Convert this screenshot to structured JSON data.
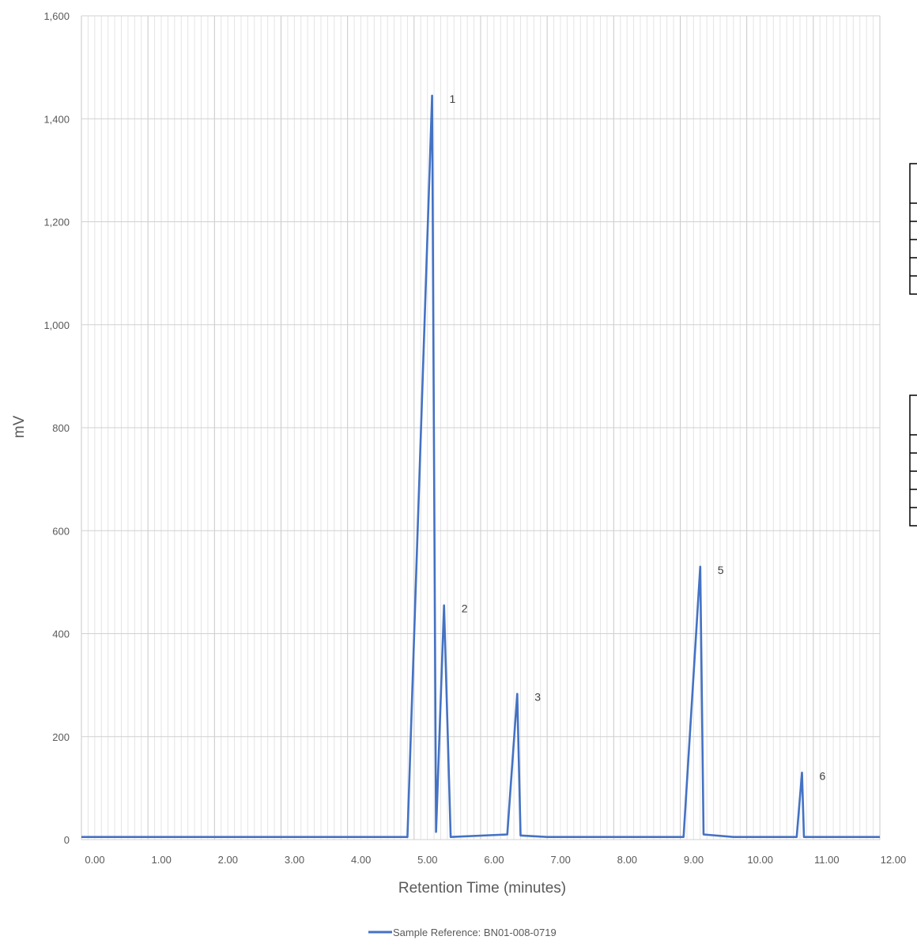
{
  "chart_data": {
    "type": "line",
    "xlabel": "Retention  Time (minutes)",
    "ylabel": "mV",
    "xlim": [
      0,
      12
    ],
    "ylim": [
      0,
      1600
    ],
    "x_ticks": [
      "0.00",
      "1.00",
      "2.00",
      "3.00",
      "4.00",
      "5.00",
      "6.00",
      "7.00",
      "8.00",
      "9.00",
      "10.00",
      "11.00",
      "12.00"
    ],
    "y_ticks": [
      "0",
      "200",
      "400",
      "600",
      "800",
      "1,000",
      "1,200",
      "1,400",
      "1,600"
    ],
    "grid": {
      "major_x": true,
      "minor_x": true,
      "major_y": true
    },
    "legend_position": "bottom",
    "series": [
      {
        "name": "Sample Reference: BN01-008-0719",
        "color": "#4472c4",
        "x": [
          0.0,
          4.9,
          5.27,
          5.33,
          5.45,
          5.55,
          6.4,
          6.55,
          6.6,
          7.0,
          9.05,
          9.3,
          9.35,
          9.8,
          10.75,
          10.83,
          10.86,
          11.0,
          12.0
        ],
        "y": [
          5,
          5,
          1445,
          15,
          455,
          5,
          10,
          283,
          8,
          5,
          5,
          530,
          10,
          5,
          5,
          130,
          5,
          5,
          5
        ]
      }
    ],
    "peak_labels": [
      {
        "text": "1",
        "x": 5.27,
        "y": 1445
      },
      {
        "text": "2",
        "x": 5.45,
        "y": 455
      },
      {
        "text": "3",
        "x": 6.55,
        "y": 283
      },
      {
        "text": "5",
        "x": 9.3,
        "y": 530
      },
      {
        "text": "6",
        "x": 10.83,
        "y": 130
      }
    ],
    "side_tables": [
      {
        "rows": 6
      },
      {
        "rows": 6
      }
    ]
  }
}
